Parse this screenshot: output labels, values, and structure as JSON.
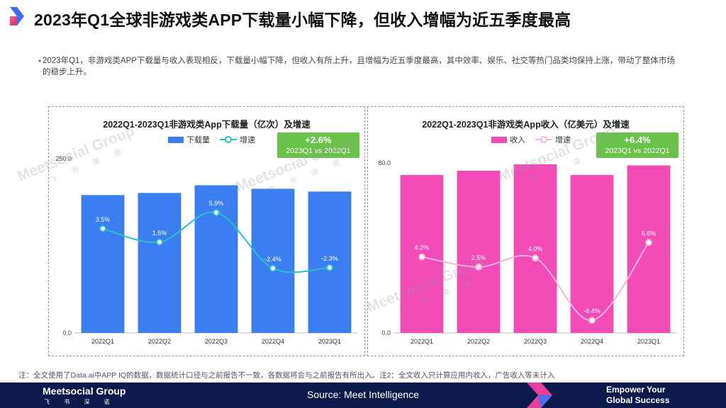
{
  "page": {
    "title": "2023年Q1全球非游戏类APP下载量小幅下降，但收入增幅为近五季度最高",
    "bullet": "2023年Q1，非游戏类APP下载量与收入表现相反，下载量小幅下降，但收入有所上升，且增幅为近五季度最高，其中效率、娱乐、社交等热门品类均保持上涨，带动了整体市场的稳步上升。",
    "footnote": "注：全文使用了Data.ai中APP IQ的数据，数据统计口径与之前报告不一致，各数据将会与之前报告有所出入。注2：全文收入只计算应用内收入，广告收入等未计入"
  },
  "footer": {
    "logo": "Meetsocial Group",
    "logo_sub": "飞 书 深 诺",
    "source": "Source:   Meet Intelligence",
    "tagline_1": "Empower Your",
    "tagline_2": "Global Success"
  },
  "watermark": {
    "text": "Meetsocial Group",
    "sub": "飞 书 深 诺"
  },
  "badges": {
    "left_value": "+2.6%",
    "left_caption": "2023Q1 vs 2022Q1",
    "right_value": "+6.4%",
    "right_caption": "2023Q1 vs 2022Q1"
  },
  "colors": {
    "downloads_bar": "#3a7ef2",
    "downloads_line": "#2bbfc9",
    "revenue_bar": "#f24bb7",
    "revenue_line": "#f7b3dd",
    "badge": "#6bc24a",
    "footer_bg": "#0d1b4c"
  },
  "chart_data": [
    {
      "type": "bar",
      "title": "2022Q1-2023Q1非游戏类App下载量（亿次）及增速",
      "categories": [
        "2022Q1",
        "2022Q2",
        "2022Q3",
        "2022Q4",
        "2023Q1"
      ],
      "ylim": [
        0,
        250
      ],
      "ytick_labels": [
        "0.0",
        "250.0"
      ],
      "series": [
        {
          "name": "下载量",
          "kind": "bar",
          "values": [
            197,
            200,
            211,
            206,
            202
          ]
        },
        {
          "name": "增速",
          "kind": "line",
          "values": [
            3.5,
            1.5,
            5.9,
            -2.4,
            -2.3
          ],
          "labels": [
            "3.5%",
            "1.5%",
            "5.9%",
            "-2.4%",
            "-2.3%"
          ]
        }
      ],
      "line_ylim": [
        -12,
        14
      ]
    },
    {
      "type": "bar",
      "title": "2022Q1-2023Q1非游戏类App收入（亿美元）及增速",
      "categories": [
        "2022Q1",
        "2022Q2",
        "2022Q3",
        "2022Q4",
        "2023Q1"
      ],
      "ylim": [
        0,
        80
      ],
      "ytick_labels": [
        "0.0",
        "80.0"
      ],
      "series": [
        {
          "name": "收入",
          "kind": "bar",
          "values": [
            74,
            76,
            79,
            74,
            78.5
          ]
        },
        {
          "name": "增速",
          "kind": "line",
          "values": [
            4.2,
            2.5,
            4.0,
            -6.4,
            6.6
          ],
          "labels": [
            "4.2%",
            "2.5%",
            "4.0%",
            "-6.4%",
            "6.6%"
          ]
        }
      ],
      "line_ylim": [
        -8.5,
        20
      ]
    }
  ]
}
